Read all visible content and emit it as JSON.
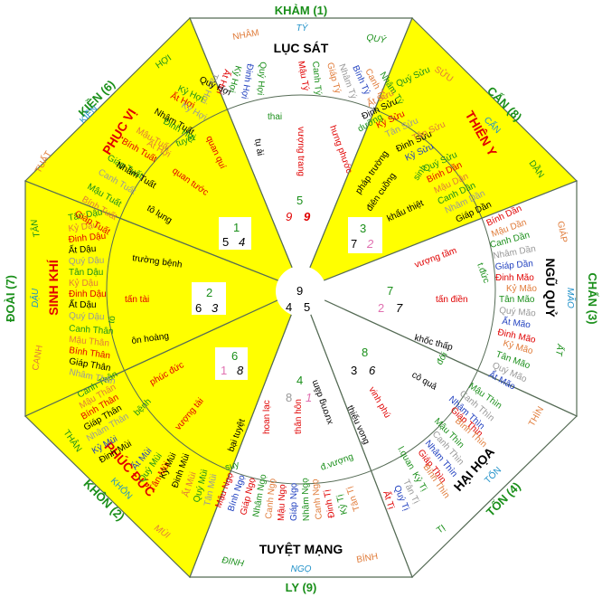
{
  "colors": {
    "yellow_fill": "#ffff00",
    "white_fill": "#ffffff",
    "outline": "#556b55",
    "green": "#1a8f1a",
    "red": "#e00000",
    "blue": "#1f3fbf",
    "orange": "#e07b39",
    "gray": "#999999",
    "black": "#000000",
    "pink": "#e070b0",
    "cyan": "#1e90c8"
  },
  "directions": {
    "kham": "KHẢM (1)",
    "can8": "CẤN (8)",
    "chan": "CHẤN (3)",
    "ton": "TỐN (4)",
    "ly": "LY (9)",
    "khon": "KHÔN (2)",
    "doai": "ĐOÀI (7)",
    "kien": "KIỀN (6)"
  },
  "sub_directions": {
    "nham": "NHÂM",
    "ty_north": "TÝ",
    "quy_north": "QUÝ",
    "suu": "SỬU",
    "can_ne": "CẤN",
    "dan": "DẦN",
    "giap": "GIÁP",
    "mao": "MÃO",
    "at": "ẤT",
    "thin": "THÌN",
    "ton_se": "TỐN",
    "ti": "TỊ",
    "binh": "BÍNH",
    "ngo": "NGỌ",
    "dinh": "ĐINH",
    "mui": "MÙI",
    "khon_sw": "KHÔN",
    "than": "THÂN",
    "canh": "CANH",
    "dau": "DẬU",
    "tan": "TÂN",
    "tuat": "TUẤT",
    "kien_nw": "KIỀN",
    "hoi": "HỢI"
  },
  "big_labels": {
    "luc_sat": "LỤC SÁT",
    "thien_y": "THIÊN Y",
    "ngu_quy": "NGŨ QUỶ",
    "hai_hoa": "HẠI HỌA",
    "tuyet_mang": "TUYỆT MẠNG",
    "phuc_duc": "PHÚC ĐỨC",
    "sinh_khi": "SINH KHÍ",
    "phuc_vi": "PHỤC VỊ"
  },
  "stars": {
    "n_thai": "thai",
    "n_tuai": "tụ ải",
    "n_vuongtrang": "vượng trang",
    "n_hungphuoc": "hưng phước",
    "ne_duong": "dưỡng",
    "ne_phaptruong": "pháp trường",
    "ne_diencuong": "điên cuồng",
    "ne_sinh": "sinh",
    "ne_khauthiet": "khẩu thiệt",
    "e_vuonglam": "vượng tầm",
    "e_tanhdien": "tấn điền",
    "e_tduc": "t.đức",
    "e_khocthap": "khốc thấp",
    "se_coqua": "cô quả",
    "se_doi": "đới",
    "se_vinhphu": "vinh phú",
    "se_thieuvong": "thiếu vong",
    "se_lquan": "l.quan",
    "s_hoanlac": "hoan lạc",
    "s_thanhon": "thân hôn",
    "s_xuongdam": "xương dâm",
    "s_dvuong": "đ.vượng",
    "s_suy": "suy",
    "sw_phucduc": "phúc đức",
    "sw_vuongtai": "vượng tài",
    "sw_benh": "bệnh",
    "sw_baituyet": "bại tuyệt",
    "w_truongbenh": "trường bệnh",
    "w_tantai": "tấn tài",
    "w_onhoang": "ôn hoàng",
    "w_to": "tô",
    "nw_quanqui": "quan quí",
    "nw_tuyet": "tuyệt",
    "nw_quantuoc": "quan tước",
    "nw_tolung": "tô lụng"
  },
  "grid": {
    "c1": "1",
    "c1a": "5",
    "c1b": "4",
    "c2": "2",
    "c2a": "6",
    "c2b": "3",
    "c6": "6",
    "c6a": "1",
    "c6b": "8",
    "n_top": "5",
    "n_a": "9",
    "n_b": "9",
    "ne_top": "3",
    "ne_a": "7",
    "ne_b": "2",
    "e_top": "7",
    "e_a": "2",
    "e_b": "7",
    "se_top": "8",
    "se_a": "3",
    "se_b": "6",
    "s_top": "4",
    "s_a": "8",
    "s_b": "1",
    "ctr_top": "9",
    "ctr_a": "4",
    "ctr_b": "5"
  },
  "stems": {
    "n1": "Mậu Tý",
    "n2": "Canh Tý",
    "n3": "Giáp Tý",
    "n4": "Nhâm Tý",
    "n5": "Bính Tý",
    "n6": "Canh Tý",
    "n7": "Quý Hợi",
    "n8": "Đinh Hợi",
    "n9": "Kỷ Hợi",
    "n10": "Ất Hợi",
    "n11": "Tân Hợi",
    "ne1": "Nhâm Tý",
    "ne2": "Ất Sửu",
    "ne3": "Đinh Sửu",
    "ne4": "Kỷ Sửu",
    "ne5": "Tân Sửu",
    "ne6": "Quý Sửu",
    "ne7": "Đinh Sửu",
    "ne8": "Kỷ Sửu",
    "ne9": "Tân Sửu",
    "ne10": "Quý Sửu",
    "ne11": "Bính Dần",
    "ne12": "Mậu Dần",
    "ne13": "Canh Dần",
    "ne14": "Nhâm Dần",
    "ne15": "Giáp Dần",
    "e1": "Bính Dần",
    "e2": "Mậu Dần",
    "e3": "Canh Dần",
    "e4": "Nhâm Dần",
    "e5": "Giáp Dần",
    "e6": "Đinh Mão",
    "e7": "Kỷ Mão",
    "e8": "Tân Mão",
    "e9": "Quý Mão",
    "e10": "Ất Mão",
    "e11": "Đinh Mão",
    "e12": "Kỷ Mão",
    "e13": "Tân Mão",
    "e14": "Quý Mão",
    "e15": "Ất Mão",
    "se1": "Mậu Thìn",
    "se2": "Canh Thìn",
    "se3": "Nhâm Thìn",
    "se4": "Giáp Thìn",
    "se5": "Bính Thìn",
    "se6": "Mậu Thìn",
    "se7": "Canh Thìn",
    "se8": "Nhâm Thìn",
    "se9": "Giáp Thìn",
    "se10": "Bính Thìn",
    "se11": "Kỷ Tị",
    "se12": "Tân Tị",
    "se13": "Quý Tị",
    "se14": "Ất Tị",
    "s1": "Mậu Ngọ",
    "s2": "Bính Ngọ",
    "s3": "Giáp Ngọ",
    "s4": "Nhâm Ngọ",
    "s5": "Canh Ngọ",
    "s6": "Mậu Ngọ",
    "s7": "Giáp Ngọ",
    "s8": "Nhâm Ngọ",
    "s9": "Canh Ngọ",
    "s10": "Đinh Tị",
    "s11": "Kỷ Tị",
    "s12": "Tân Tị",
    "sw1": "Canh Thân",
    "sw2": "Mậu Thân",
    "sw3": "Bính Thân",
    "sw4": "Giáp Thân",
    "sw5": "Nhâm Thân",
    "sw6": "Kỷ Mùi",
    "sw7": "Đinh Mùi",
    "sw8": "Ất Mùi",
    "sw9": "Quý Mùi",
    "sw10": "Tân Mùi",
    "sw11": "Kỷ Mùi",
    "sw12": "Đinh Mùi",
    "sw13": "Ất Mùi",
    "sw14": "Quý Mùi",
    "sw15": "Tân Mùi",
    "w1": "Tân Dậu",
    "w2": "Kỷ Dậu",
    "w3": "Đinh Dậu",
    "w4": "Ất Dậu",
    "w5": "Quý Dậu",
    "w6": "Tân Dậu",
    "w7": "Kỷ Dậu",
    "w8": "Đinh Dậu",
    "w9": "Ất Dậu",
    "w10": "Quý Dậu",
    "w11": "Canh Thân",
    "w12": "Mậu Thân",
    "w13": "Bính Thân",
    "w14": "Giáp Thân",
    "w15": "Nhâm Thân",
    "nw1": "Quý Hợi",
    "nw2": "Ất Hợi",
    "nw3": "Kỷ Hợi",
    "nw4": "Nhâm Tuất",
    "nw5": "Mậu Tuất",
    "nw6": "Bính Tuất",
    "nw7": "Giáp Tuất",
    "nw8": "Nhâm Tuất",
    "nw9": "Canh Tuất",
    "nw10": "Mậu Tuất",
    "nw11": "Bính Tuất",
    "nw12": "Giáp Tuất",
    "nw13": "Đinh Hợi",
    "nw14": "Kỷ Hợi",
    "nw15": "Ất Hợi"
  }
}
